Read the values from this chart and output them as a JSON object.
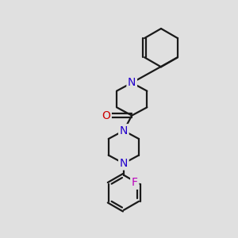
{
  "bg_color": "#e0e0e0",
  "bond_color": "#1a1a1a",
  "N_color": "#2200cc",
  "O_color": "#cc0000",
  "F_color": "#bb00bb",
  "line_width": 1.6,
  "font_size": 10,
  "fig_size": [
    3.0,
    3.0
  ],
  "dpi": 100,
  "xlim": [
    0,
    10
  ],
  "ylim": [
    0,
    10
  ]
}
